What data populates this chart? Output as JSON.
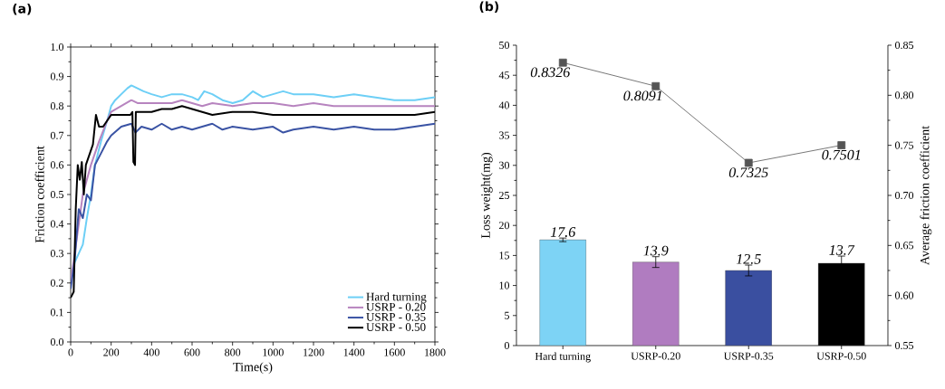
{
  "chart_data": [
    {
      "type": "line",
      "title": "(a)",
      "xlabel": "Time(s)",
      "ylabel": "Friction coefficient",
      "xlim": [
        0,
        1800
      ],
      "xticks": [
        0,
        200,
        400,
        600,
        800,
        1000,
        1200,
        1400,
        1600,
        1800
      ],
      "ylim": [
        0,
        1
      ],
      "yticks": [
        {
          "value": 0,
          "label": "0.0"
        },
        0.1,
        0.2,
        0.3,
        0.4,
        0.5,
        0.6,
        0.7,
        0.8,
        0.9,
        {
          "value": 1,
          "label": "1.0"
        }
      ],
      "legend": "bottom right",
      "series": [
        {
          "name": "Hard turning",
          "color": "#6dcff6",
          "x": [
            0,
            20,
            40,
            60,
            80,
            100,
            120,
            150,
            180,
            200,
            220,
            250,
            280,
            300,
            330,
            360,
            400,
            450,
            500,
            550,
            600,
            630,
            660,
            700,
            750,
            800,
            850,
            900,
            950,
            1000,
            1050,
            1100,
            1200,
            1300,
            1400,
            1500,
            1600,
            1700,
            1800
          ],
          "values": [
            0.2,
            0.27,
            0.3,
            0.33,
            0.42,
            0.5,
            0.6,
            0.68,
            0.75,
            0.8,
            0.82,
            0.84,
            0.86,
            0.87,
            0.86,
            0.85,
            0.84,
            0.83,
            0.84,
            0.84,
            0.83,
            0.82,
            0.85,
            0.84,
            0.82,
            0.81,
            0.82,
            0.85,
            0.83,
            0.84,
            0.85,
            0.84,
            0.84,
            0.83,
            0.84,
            0.83,
            0.82,
            0.82,
            0.83
          ]
        },
        {
          "name": "USRP - 0.20",
          "color": "#b784bf",
          "x": [
            0,
            30,
            60,
            100,
            140,
            180,
            200,
            250,
            300,
            330,
            400,
            500,
            550,
            600,
            650,
            700,
            800,
            900,
            1000,
            1100,
            1200,
            1300,
            1400,
            1500,
            1600,
            1700,
            1800
          ],
          "values": [
            0.2,
            0.35,
            0.5,
            0.6,
            0.68,
            0.75,
            0.78,
            0.8,
            0.82,
            0.81,
            0.81,
            0.81,
            0.82,
            0.81,
            0.8,
            0.81,
            0.8,
            0.81,
            0.81,
            0.8,
            0.81,
            0.8,
            0.8,
            0.8,
            0.8,
            0.8,
            0.8
          ]
        },
        {
          "name": "USRP - 0.35",
          "color": "#3a53a4",
          "x": [
            0,
            20,
            40,
            60,
            80,
            100,
            120,
            150,
            180,
            200,
            250,
            300,
            320,
            350,
            400,
            450,
            500,
            550,
            600,
            650,
            700,
            750,
            800,
            900,
            1000,
            1050,
            1100,
            1200,
            1300,
            1400,
            1500,
            1600,
            1700,
            1800
          ],
          "values": [
            0.18,
            0.28,
            0.45,
            0.42,
            0.5,
            0.48,
            0.6,
            0.64,
            0.68,
            0.7,
            0.73,
            0.74,
            0.71,
            0.73,
            0.72,
            0.74,
            0.72,
            0.73,
            0.72,
            0.73,
            0.74,
            0.72,
            0.73,
            0.72,
            0.73,
            0.71,
            0.72,
            0.73,
            0.72,
            0.73,
            0.72,
            0.72,
            0.73,
            0.74
          ]
        },
        {
          "name": "USRP - 0.50",
          "color": "#000000",
          "x": [
            0,
            15,
            25,
            35,
            45,
            55,
            65,
            75,
            90,
            110,
            125,
            140,
            160,
            180,
            200,
            250,
            295,
            305,
            310,
            318,
            322,
            350,
            400,
            450,
            500,
            550,
            600,
            650,
            700,
            800,
            900,
            1000,
            1100,
            1200,
            1300,
            1400,
            1500,
            1600,
            1700,
            1800
          ],
          "values": [
            0.15,
            0.17,
            0.45,
            0.6,
            0.55,
            0.61,
            0.5,
            0.6,
            0.63,
            0.67,
            0.77,
            0.73,
            0.73,
            0.75,
            0.77,
            0.77,
            0.77,
            0.78,
            0.61,
            0.6,
            0.78,
            0.78,
            0.78,
            0.79,
            0.79,
            0.8,
            0.79,
            0.78,
            0.77,
            0.78,
            0.78,
            0.77,
            0.77,
            0.77,
            0.77,
            0.77,
            0.77,
            0.77,
            0.77,
            0.78
          ]
        }
      ]
    },
    {
      "type": "bar",
      "title": "(b)",
      "ylabel": "Loss weight(mg)",
      "y2label": "Average friction coefficient",
      "categories": [
        "Hard turning",
        "USRP-0.20",
        "USRP-0.35",
        "USRP-0.50"
      ],
      "ylim": [
        0,
        50
      ],
      "yticks": [
        0,
        5,
        10,
        15,
        20,
        25,
        30,
        35,
        40,
        45,
        50
      ],
      "y2lim": [
        0.55,
        0.85
      ],
      "y2ticks": [
        0.55,
        {
          "value": 0.6,
          "label": "0.60"
        },
        0.65,
        {
          "value": 0.7,
          "label": "0.70"
        },
        0.75,
        {
          "value": 0.8,
          "label": "0.80"
        },
        0.85
      ],
      "data_labels": true,
      "series": [
        {
          "type": "bar",
          "colors": [
            "#7dd3f5",
            "#b07cc0",
            "#3a4fa0",
            "#000000"
          ],
          "values": [
            17.6,
            13.9,
            12.5,
            13.7
          ],
          "errors": [
            0.3,
            0.9,
            0.9,
            1.2
          ]
        },
        {
          "type": "line",
          "axis": "y2",
          "color": "#555555",
          "marker": "square",
          "values": [
            0.8326,
            0.8091,
            0.7325,
            0.7501
          ]
        }
      ]
    }
  ]
}
